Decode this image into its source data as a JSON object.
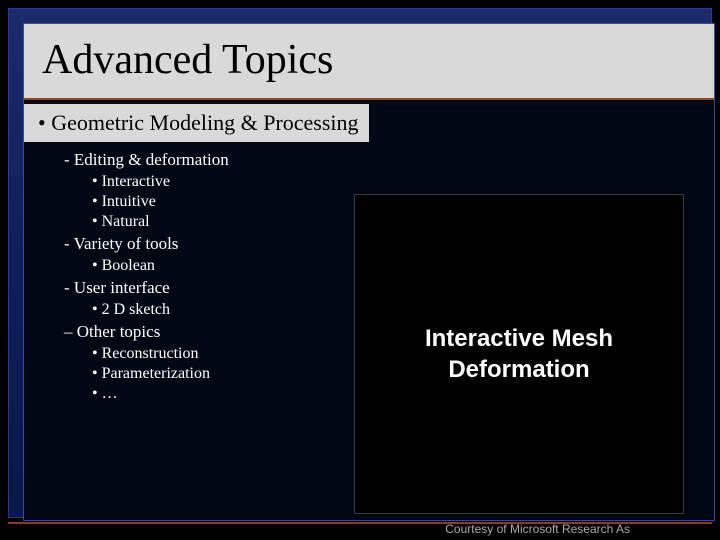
{
  "title": "Advanced Topics",
  "mainBullet": "• Geometric Modeling & Processing",
  "items": [
    {
      "text": "- Editing & deformation",
      "level": 1
    },
    {
      "text": "• Interactive",
      "level": 2
    },
    {
      "text": "• Intuitive",
      "level": 2
    },
    {
      "text": "• Natural",
      "level": 2
    },
    {
      "text": "- Variety of tools",
      "level": 1
    },
    {
      "text": "• Boolean",
      "level": 2
    },
    {
      "text": "- User interface",
      "level": 1
    },
    {
      "text": "•   2 D sketch",
      "level": 2
    },
    {
      "text": "– Other topics",
      "level": 1
    },
    {
      "text": "• Reconstruction",
      "level": 2
    },
    {
      "text": "• Parameterization",
      "level": 2
    },
    {
      "text": "•   …",
      "level": 2
    }
  ],
  "rightBox": {
    "line1": "Interactive Mesh",
    "line2": "Deformation"
  },
  "credit": "Courtesy of Microsoft Research As",
  "colors": {
    "titleBg": "#d9d9d9",
    "titleText": "#000000",
    "bodyText": "#ffffff",
    "frameBg": "#0d1f5a",
    "accent": "#8a4a2a"
  }
}
